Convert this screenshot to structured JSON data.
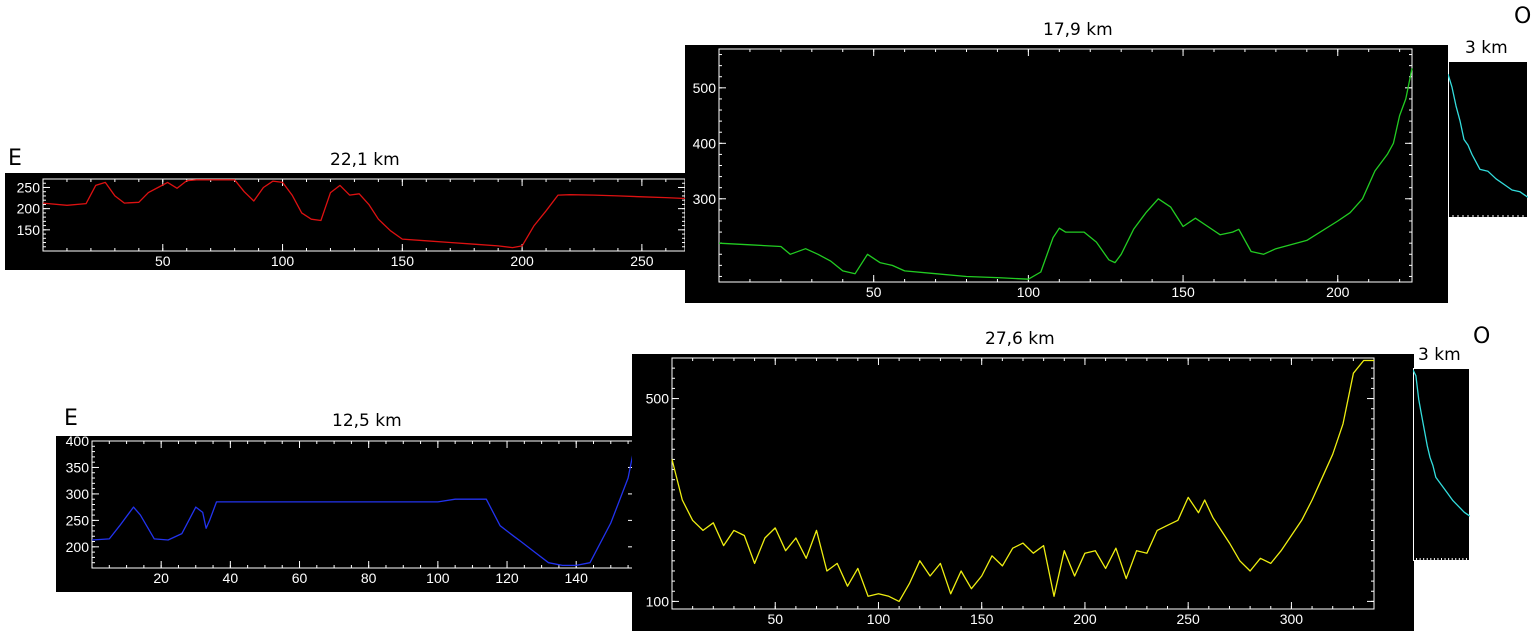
{
  "labels": {
    "e_top": "E",
    "o_top": "O",
    "e_bottom": "E",
    "o_bottom": "O"
  },
  "chart_data": [
    {
      "type": "line",
      "title": "22,1 km",
      "xlim": [
        0,
        268
      ],
      "ylim": [
        100,
        270
      ],
      "xticks": [
        50,
        100,
        150,
        200,
        250
      ],
      "yticks": [
        150,
        200,
        250
      ],
      "series": [
        {
          "color": "#dd1111",
          "x": [
            0,
            10,
            18,
            22,
            26,
            30,
            34,
            40,
            44,
            48,
            52,
            56,
            60,
            64,
            70,
            80,
            84,
            88,
            92,
            96,
            100,
            104,
            108,
            112,
            116,
            120,
            124,
            128,
            132,
            136,
            140,
            145,
            150,
            160,
            170,
            180,
            190,
            196,
            200,
            205,
            210,
            215,
            220,
            230,
            240,
            250,
            260,
            268
          ],
          "y": [
            213,
            208,
            212,
            255,
            262,
            230,
            213,
            215,
            238,
            250,
            262,
            248,
            266,
            268,
            268,
            268,
            240,
            218,
            250,
            265,
            262,
            232,
            190,
            175,
            172,
            238,
            255,
            232,
            235,
            210,
            175,
            148,
            128,
            124,
            120,
            116,
            112,
            108,
            112,
            160,
            195,
            232,
            233,
            232,
            230,
            228,
            226,
            224
          ]
        }
      ]
    },
    {
      "type": "line",
      "title": "17,9 km",
      "xlim": [
        0,
        224
      ],
      "ylim": [
        150,
        570
      ],
      "xticks": [
        50,
        100,
        150,
        200
      ],
      "yticks": [
        300,
        400,
        500
      ],
      "series": [
        {
          "color": "#22cc22",
          "x": [
            0,
            10,
            20,
            23,
            28,
            32,
            36,
            40,
            44,
            48,
            52,
            56,
            60,
            70,
            80,
            90,
            100,
            104,
            108,
            110,
            112,
            114,
            118,
            122,
            126,
            128,
            130,
            134,
            138,
            142,
            146,
            150,
            154,
            158,
            162,
            166,
            168,
            172,
            176,
            180,
            190,
            200,
            204,
            208,
            212,
            216,
            218,
            220,
            222,
            224
          ],
          "y": [
            220,
            217,
            214,
            200,
            210,
            200,
            188,
            170,
            165,
            200,
            185,
            180,
            170,
            165,
            160,
            158,
            155,
            168,
            230,
            247,
            240,
            240,
            240,
            222,
            190,
            185,
            200,
            245,
            275,
            300,
            285,
            250,
            265,
            250,
            235,
            240,
            245,
            205,
            200,
            210,
            225,
            260,
            275,
            300,
            350,
            380,
            400,
            450,
            480,
            535
          ]
        }
      ]
    },
    {
      "type": "line",
      "title": "3 km",
      "xlim": [
        0,
        20
      ],
      "ylim": [
        150,
        570
      ],
      "series": [
        {
          "color": "#33dddd",
          "x": [
            0,
            1,
            2,
            3,
            4,
            5,
            6,
            7,
            8,
            10,
            12,
            14,
            16,
            18,
            20
          ],
          "y": [
            535,
            500,
            450,
            410,
            360,
            345,
            320,
            300,
            280,
            275,
            255,
            240,
            225,
            220,
            205
          ]
        }
      ]
    },
    {
      "type": "line",
      "title": "12,5 km",
      "xlim": [
        0,
        157
      ],
      "ylim": [
        160,
        400
      ],
      "xticks": [
        20,
        40,
        60,
        80,
        100,
        120,
        140
      ],
      "yticks": [
        200,
        250,
        300,
        350,
        400
      ],
      "series": [
        {
          "color": "#2233ee",
          "x": [
            0,
            5,
            8,
            12,
            14,
            18,
            22,
            26,
            30,
            32,
            33,
            34,
            36,
            40,
            50,
            60,
            70,
            80,
            90,
            100,
            105,
            110,
            114,
            118,
            122,
            124,
            128,
            132,
            136,
            140,
            144,
            150,
            155,
            157
          ],
          "y": [
            213,
            215,
            240,
            275,
            260,
            215,
            213,
            225,
            275,
            265,
            235,
            250,
            285,
            285,
            285,
            285,
            285,
            285,
            285,
            285,
            290,
            290,
            290,
            240,
            220,
            210,
            190,
            170,
            165,
            165,
            170,
            245,
            330,
            395
          ]
        }
      ]
    },
    {
      "type": "line",
      "title": "27,6 km",
      "xlim": [
        0,
        340
      ],
      "ylim": [
        85,
        580
      ],
      "xticks": [
        50,
        100,
        150,
        200,
        250,
        300
      ],
      "yticks": [
        100,
        500
      ],
      "series": [
        {
          "color": "#eeee11",
          "x": [
            0,
            5,
            10,
            15,
            20,
            25,
            30,
            35,
            40,
            45,
            50,
            55,
            60,
            65,
            70,
            75,
            80,
            85,
            90,
            95,
            100,
            105,
            110,
            115,
            120,
            125,
            130,
            135,
            140,
            145,
            150,
            155,
            160,
            165,
            170,
            175,
            180,
            185,
            190,
            195,
            200,
            205,
            210,
            215,
            220,
            225,
            230,
            235,
            240,
            245,
            250,
            255,
            258,
            262,
            266,
            270,
            275,
            280,
            285,
            290,
            295,
            300,
            305,
            310,
            315,
            320,
            325,
            330,
            335,
            340
          ],
          "y": [
            380,
            300,
            260,
            240,
            255,
            210,
            240,
            230,
            175,
            225,
            245,
            200,
            225,
            185,
            240,
            160,
            175,
            130,
            165,
            110,
            115,
            110,
            100,
            135,
            180,
            150,
            175,
            115,
            160,
            125,
            150,
            190,
            170,
            205,
            215,
            195,
            210,
            110,
            200,
            150,
            195,
            200,
            165,
            205,
            145,
            200,
            195,
            240,
            250,
            260,
            305,
            275,
            300,
            265,
            240,
            215,
            180,
            160,
            185,
            175,
            200,
            230,
            260,
            300,
            345,
            390,
            450,
            550,
            575,
            575
          ]
        }
      ]
    },
    {
      "type": "line",
      "title": "3 km",
      "xlim": [
        0,
        20
      ],
      "ylim": [
        85,
        580
      ],
      "series": [
        {
          "color": "#33dddd",
          "x": [
            0,
            1,
            2,
            3,
            4,
            5,
            6,
            7,
            8,
            10,
            12,
            14,
            16,
            18,
            20
          ],
          "y": [
            575,
            560,
            500,
            460,
            420,
            380,
            350,
            330,
            300,
            280,
            260,
            240,
            225,
            210,
            200
          ]
        }
      ]
    }
  ]
}
